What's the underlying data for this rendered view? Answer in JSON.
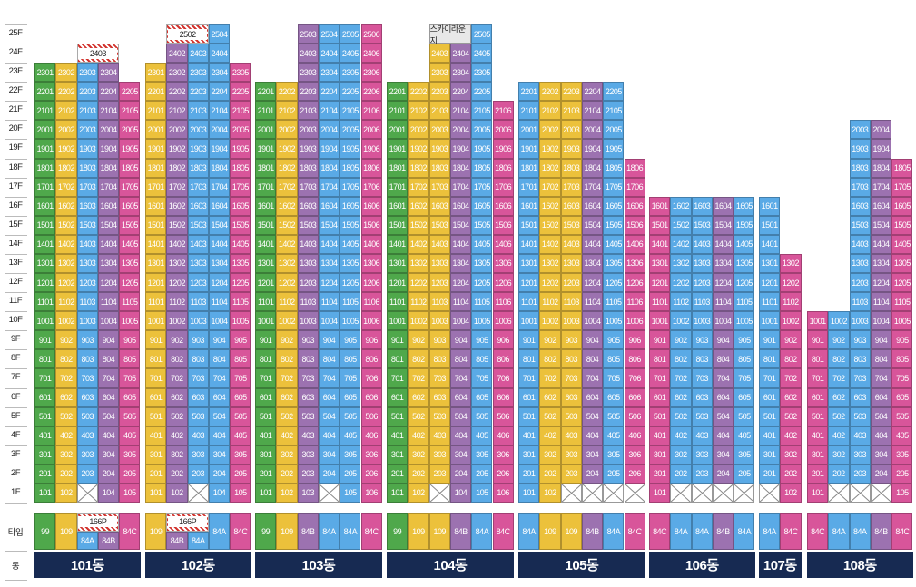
{
  "colors": {
    "green": "#4fa84b",
    "yellow": "#ecc13b",
    "blue": "#5aaae6",
    "purple": "#9c72b0",
    "pink": "#d8559a",
    "navy": "#172a52",
    "hatch": "#d2342f"
  },
  "floors": [
    "25F",
    "24F",
    "23F",
    "22F",
    "21F",
    "20F",
    "19F",
    "18F",
    "17F",
    "16F",
    "15F",
    "14F",
    "13F",
    "12F",
    "11F",
    "10F",
    "9F",
    "8F",
    "7F",
    "6F",
    "5F",
    "4F",
    "3F",
    "2F",
    "1F"
  ],
  "type_label": "타입",
  "dong_label": "동",
  "buildings": [
    {
      "name": "101동",
      "cols": [
        {
          "c": "green",
          "top": 23,
          "missing": []
        },
        {
          "c": "yellow",
          "top": 23,
          "missing": []
        },
        {
          "c": "blue",
          "top": 23,
          "missing": [
            1
          ]
        },
        {
          "c": "purple",
          "top": 23,
          "missing": []
        },
        {
          "c": "pink",
          "top": 22,
          "missing": []
        }
      ],
      "specials": [
        {
          "label": "2403",
          "floor": 24,
          "col": 3,
          "span": 2,
          "style": "hatch"
        }
      ],
      "types": [
        {
          "label": "99",
          "c": "green"
        },
        {
          "label": "109",
          "c": "yellow"
        },
        {
          "label": "166P",
          "span": 2,
          "sub": [
            {
              "label": "84A",
              "c": "blue"
            },
            {
              "label": "84B",
              "c": "purple"
            }
          ]
        },
        {
          "label": "84C",
          "c": "pink"
        }
      ]
    },
    {
      "name": "102동",
      "cols": [
        {
          "c": "yellow",
          "top": 23,
          "missing": []
        },
        {
          "c": "purple",
          "top": 24,
          "missing": []
        },
        {
          "c": "blue",
          "top": 24,
          "missing": [
            1
          ]
        },
        {
          "c": "blue",
          "top": 25,
          "missing": []
        },
        {
          "c": "pink",
          "top": 23,
          "missing": []
        }
      ],
      "specials": [
        {
          "label": "2502",
          "floor": 25,
          "col": 2,
          "span": 2,
          "style": "hatch"
        }
      ],
      "types": [
        {
          "label": "109",
          "c": "yellow"
        },
        {
          "label": "166P",
          "span": 2,
          "sub": [
            {
              "label": "84B",
              "c": "purple"
            },
            {
              "label": "84A",
              "c": "blue"
            }
          ]
        },
        {
          "label": "84A",
          "c": "blue"
        },
        {
          "label": "84C",
          "c": "pink"
        }
      ]
    },
    {
      "name": "103동",
      "cols": [
        {
          "c": "green",
          "top": 22,
          "missing": []
        },
        {
          "c": "yellow",
          "top": 22,
          "missing": []
        },
        {
          "c": "purple",
          "top": 25,
          "missing": []
        },
        {
          "c": "blue",
          "top": 25,
          "missing": [
            1
          ]
        },
        {
          "c": "blue",
          "top": 25,
          "missing": []
        },
        {
          "c": "pink",
          "top": 25,
          "missing": []
        }
      ],
      "specials": [],
      "types": [
        {
          "label": "99",
          "c": "green"
        },
        {
          "label": "109",
          "c": "yellow"
        },
        {
          "label": "84B",
          "c": "purple"
        },
        {
          "label": "84A",
          "c": "blue"
        },
        {
          "label": "84A",
          "c": "blue"
        },
        {
          "label": "84C",
          "c": "pink"
        }
      ]
    },
    {
      "name": "104동",
      "cols": [
        {
          "c": "green",
          "top": 22,
          "missing": []
        },
        {
          "c": "yellow",
          "top": 22,
          "missing": []
        },
        {
          "c": "yellow",
          "top": 24,
          "missing": [
            1
          ]
        },
        {
          "c": "purple",
          "top": 24,
          "missing": []
        },
        {
          "c": "blue",
          "top": 25,
          "missing": []
        },
        {
          "c": "pink",
          "top": 21,
          "missing": []
        }
      ],
      "specials": [
        {
          "label": "스카이라운지",
          "floor": 25,
          "col": 3,
          "span": 2,
          "style": "lounge"
        }
      ],
      "types": [
        {
          "label": "99",
          "c": "green"
        },
        {
          "label": "109",
          "c": "yellow"
        },
        {
          "label": "109",
          "c": "yellow"
        },
        {
          "label": "84B",
          "c": "purple"
        },
        {
          "label": "84A",
          "c": "blue"
        },
        {
          "label": "84C",
          "c": "pink"
        }
      ]
    },
    {
      "name": "105동",
      "cols": [
        {
          "c": "blue",
          "top": 22,
          "missing": []
        },
        {
          "c": "yellow",
          "top": 22,
          "missing": []
        },
        {
          "c": "yellow",
          "top": 22,
          "missing": [
            1
          ]
        },
        {
          "c": "purple",
          "top": 22,
          "missing": [
            1
          ]
        },
        {
          "c": "blue",
          "top": 22,
          "missing": [
            1
          ]
        },
        {
          "c": "pink",
          "top": 18,
          "missing": [
            1
          ]
        }
      ],
      "specials": [],
      "types": [
        {
          "label": "84A",
          "c": "blue"
        },
        {
          "label": "109",
          "c": "yellow"
        },
        {
          "label": "109",
          "c": "yellow"
        },
        {
          "label": "84B",
          "c": "purple"
        },
        {
          "label": "84A",
          "c": "blue"
        },
        {
          "label": "84C",
          "c": "pink"
        }
      ]
    },
    {
      "name": "106동",
      "cols": [
        {
          "c": "pink",
          "top": 16,
          "missing": []
        },
        {
          "c": "blue",
          "top": 16,
          "missing": [
            1
          ]
        },
        {
          "c": "blue",
          "top": 16,
          "missing": [
            1
          ]
        },
        {
          "c": "purple",
          "top": 16,
          "missing": [
            1
          ]
        },
        {
          "c": "blue",
          "top": 16,
          "missing": [
            1
          ]
        }
      ],
      "specials": [],
      "types": [
        {
          "label": "84C",
          "c": "pink"
        },
        {
          "label": "84A",
          "c": "blue"
        },
        {
          "label": "84A",
          "c": "blue"
        },
        {
          "label": "84B",
          "c": "purple"
        },
        {
          "label": "84A",
          "c": "blue"
        }
      ]
    },
    {
      "name": "107동",
      "cols": [
        {
          "c": "blue",
          "top": 16,
          "missing": [
            1
          ]
        },
        {
          "c": "pink",
          "top": 13,
          "missing": []
        }
      ],
      "specials": [],
      "types": [
        {
          "label": "84A",
          "c": "blue"
        },
        {
          "label": "84C",
          "c": "pink"
        }
      ]
    },
    {
      "name": "108동",
      "cols": [
        {
          "c": "pink",
          "top": 10,
          "missing": []
        },
        {
          "c": "blue",
          "top": 10,
          "missing": [
            1
          ]
        },
        {
          "c": "blue",
          "top": 20,
          "missing": [
            1
          ]
        },
        {
          "c": "purple",
          "top": 20,
          "missing": [
            1
          ]
        },
        {
          "c": "pink",
          "top": 18,
          "missing": []
        }
      ],
      "specials": [],
      "types": [
        {
          "label": "84C",
          "c": "pink"
        },
        {
          "label": "84A",
          "c": "blue"
        },
        {
          "label": "84A",
          "c": "blue"
        },
        {
          "label": "84B",
          "c": "purple"
        },
        {
          "label": "84C",
          "c": "pink"
        }
      ]
    }
  ]
}
